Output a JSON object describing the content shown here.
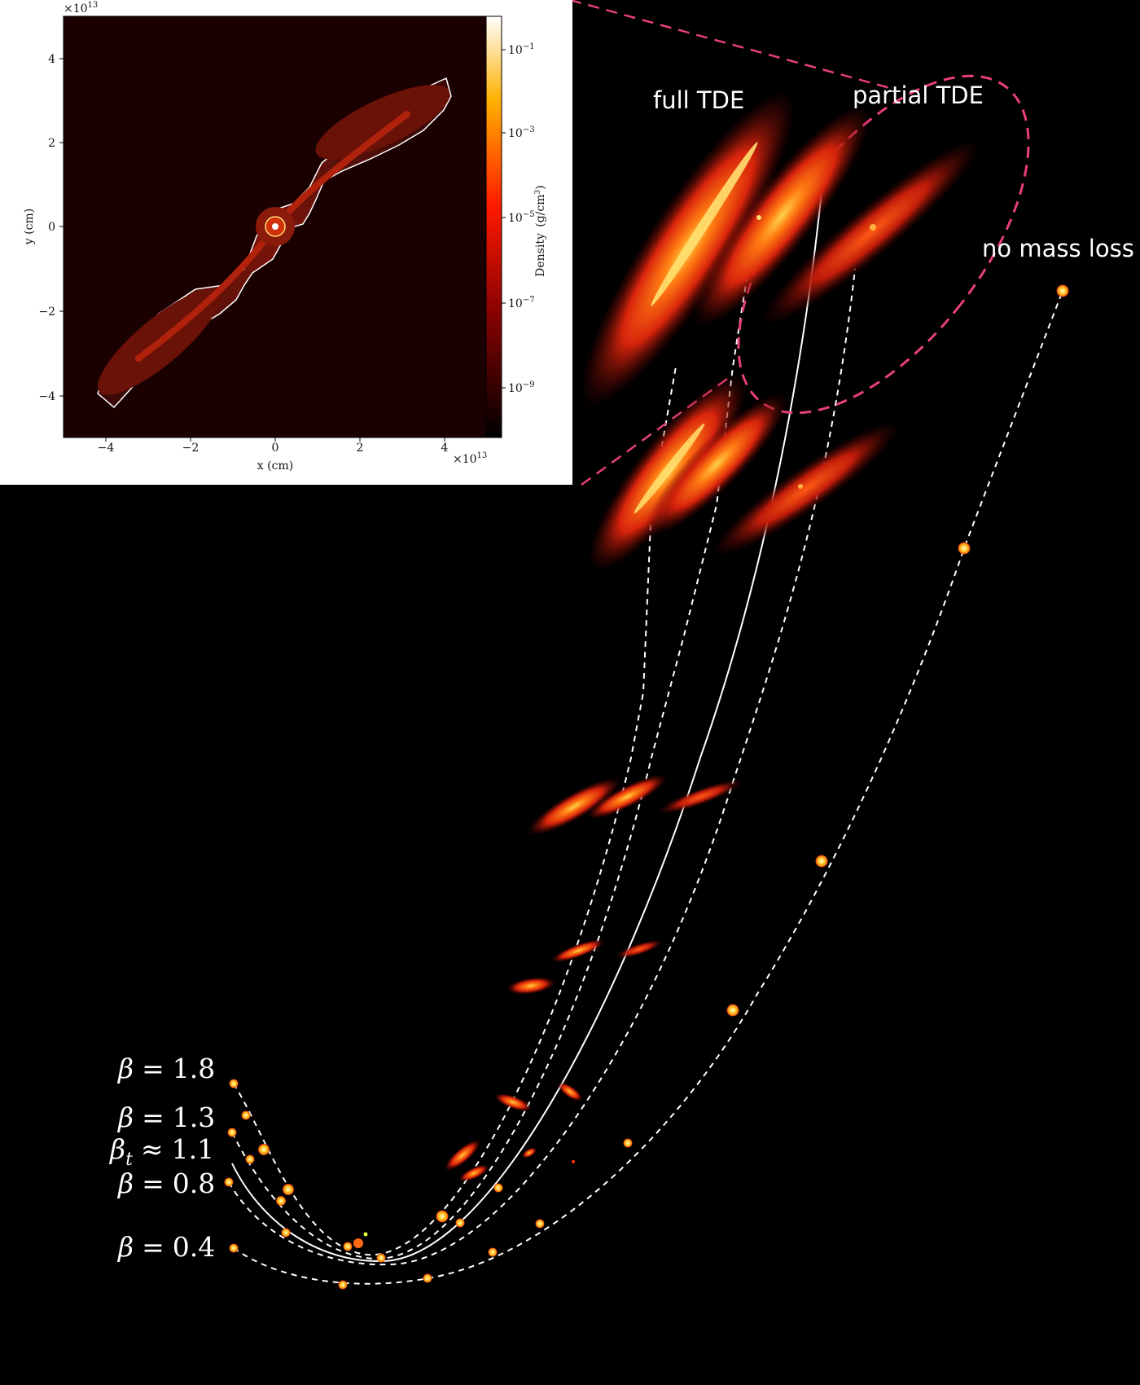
{
  "labels": {
    "full_tde": "full TDE",
    "partial_tde": "partial TDE",
    "no_mass_loss": "no mass loss"
  },
  "beta_labels": [
    {
      "sym": "β",
      "sub": "",
      "rel": "=",
      "val": "1.8"
    },
    {
      "sym": "β",
      "sub": "",
      "rel": "=",
      "val": "1.3"
    },
    {
      "sym": "β",
      "sub": "t",
      "rel": "≈",
      "val": "1.1"
    },
    {
      "sym": "β",
      "sub": "",
      "rel": "=",
      "val": "0.8"
    },
    {
      "sym": "β",
      "sub": "",
      "rel": "=",
      "val": "0.4"
    }
  ],
  "inset": {
    "x_label": "x  (cm)",
    "y_label": "y  (cm)",
    "x_exponent_prefix": "×10",
    "x_exponent": "13",
    "y_exponent_prefix": "×10",
    "y_exponent": "13",
    "x_ticks": [
      "−4",
      "−2",
      "0",
      "2",
      "4"
    ],
    "y_ticks": [
      "4",
      "2",
      "0",
      "−2",
      "−4"
    ],
    "colorbar_label": "Density",
    "colorbar_unit_num": "g",
    "colorbar_unit_den": "cm",
    "colorbar_unit_den_exp": "3",
    "colorbar_ticks": [
      {
        "base": "10",
        "exp": "−1"
      },
      {
        "base": "10",
        "exp": "−3"
      },
      {
        "base": "10",
        "exp": "−5"
      },
      {
        "base": "10",
        "exp": "−7"
      },
      {
        "base": "10",
        "exp": "−9"
      }
    ]
  },
  "colors": {
    "background": "#000000",
    "trajectory": "#ffffff",
    "highlight": "#e8407a",
    "star_core": "#ffe866",
    "debris_hot": "#ff9a1a",
    "debris_cool": "#b01208"
  }
}
